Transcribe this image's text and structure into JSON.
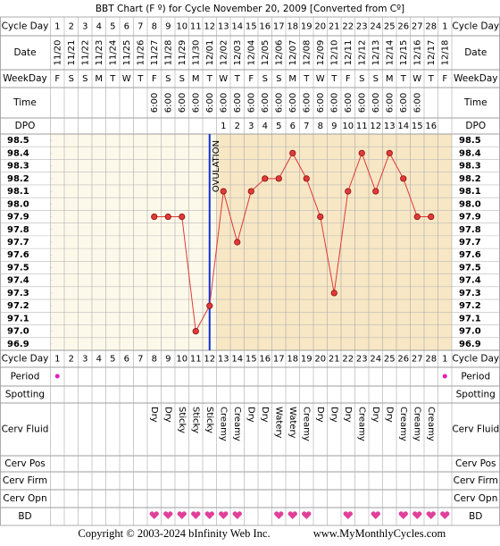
{
  "chart_data": {
    "type": "line",
    "title": "BBT Chart (F º) for Cycle November 20, 2009  [Converted from Cº]",
    "row_labels": [
      "Cycle Day",
      "Date",
      "WeekDay",
      "Time",
      "DPO",
      "Cycle Day",
      "Period",
      "Spotting",
      "Cerv Fluid",
      "Cerv Pos",
      "Cerv Firm",
      "Cerv Opn",
      "BD"
    ],
    "categories": [
      1,
      2,
      3,
      4,
      5,
      6,
      7,
      8,
      9,
      10,
      11,
      12,
      13,
      14,
      15,
      16,
      17,
      18,
      19,
      20,
      21,
      22,
      23,
      24,
      25,
      26,
      27,
      28,
      1
    ],
    "dates": [
      "11/20",
      "11/21",
      "11/22",
      "11/23",
      "11/24",
      "11/25",
      "11/26",
      "11/27",
      "11/28",
      "11/29",
      "11/30",
      "12/01",
      "12/02",
      "12/03",
      "12/04",
      "12/05",
      "12/06",
      "12/07",
      "12/08",
      "12/09",
      "12/10",
      "12/11",
      "12/12",
      "12/13",
      "12/14",
      "12/15",
      "12/16",
      "12/17",
      "12/18"
    ],
    "weekdays": [
      "F",
      "S",
      "S",
      "M",
      "T",
      "W",
      "T",
      "F",
      "S",
      "S",
      "M",
      "T",
      "W",
      "T",
      "F",
      "S",
      "S",
      "M",
      "T",
      "W",
      "T",
      "F",
      "S",
      "S",
      "M",
      "T",
      "W",
      "T",
      "F"
    ],
    "times": [
      null,
      null,
      null,
      null,
      null,
      null,
      null,
      "6:00",
      "6:00",
      "6:00",
      "6:00",
      "6:00",
      "6:00",
      "6:00",
      "6:00",
      "6:00",
      "6:00",
      "6:00",
      "6:00",
      "6:00",
      "6:00",
      "6:00",
      "6:00",
      "6:00",
      "6:00",
      "6:00",
      "6:00",
      null,
      null
    ],
    "dpo": [
      null,
      null,
      null,
      null,
      null,
      null,
      null,
      null,
      null,
      null,
      null,
      null,
      1,
      2,
      3,
      4,
      5,
      6,
      7,
      8,
      9,
      10,
      11,
      12,
      13,
      14,
      15,
      16,
      null
    ],
    "values": [
      null,
      null,
      null,
      null,
      null,
      null,
      null,
      97.9,
      97.9,
      97.9,
      97.0,
      97.2,
      98.1,
      97.7,
      98.1,
      98.2,
      98.2,
      98.4,
      98.2,
      97.9,
      97.3,
      98.1,
      98.4,
      98.1,
      98.4,
      98.2,
      97.9,
      97.9,
      null
    ],
    "color": "#e03a3a",
    "ylim": [
      96.85,
      98.55
    ],
    "yticks": [
      98.5,
      98.4,
      98.3,
      98.2,
      98.1,
      {
        "value": 98.0,
        "label": "98.0"
      },
      97.9,
      97.8,
      97.7,
      97.6,
      97.5,
      97.4,
      97.3,
      97.2,
      97.1,
      {
        "value": 97.0,
        "label": "97.0"
      },
      96.9
    ],
    "annotation": "OVULATION",
    "ovulation_day": 12,
    "period": [
      true,
      false,
      false,
      false,
      false,
      false,
      false,
      false,
      false,
      false,
      false,
      false,
      false,
      false,
      false,
      false,
      false,
      false,
      false,
      false,
      false,
      false,
      false,
      false,
      false,
      false,
      false,
      false,
      true
    ],
    "cervical_fluid": [
      null,
      null,
      null,
      null,
      null,
      null,
      null,
      "Dry",
      "Dry",
      "Sticky",
      "Sticky",
      "Sticky",
      "Creamy",
      "Creamy",
      "Dry",
      "Dry",
      "Watery",
      "Watery",
      "Creamy",
      "Dry",
      "Dry",
      "Dry",
      "Creamy",
      "Dry",
      "Dry",
      "Creamy",
      "Creamy",
      "Creamy",
      null
    ],
    "bd": [
      false,
      false,
      false,
      false,
      false,
      false,
      false,
      true,
      true,
      true,
      true,
      true,
      true,
      true,
      false,
      false,
      true,
      true,
      true,
      false,
      false,
      true,
      false,
      true,
      false,
      true,
      true,
      true,
      true
    ],
    "footer": {
      "copyright": "Copyright © 2003-2024 bInfinity Web Inc.",
      "site": "www.MyMonthlyCycles.com"
    }
  }
}
